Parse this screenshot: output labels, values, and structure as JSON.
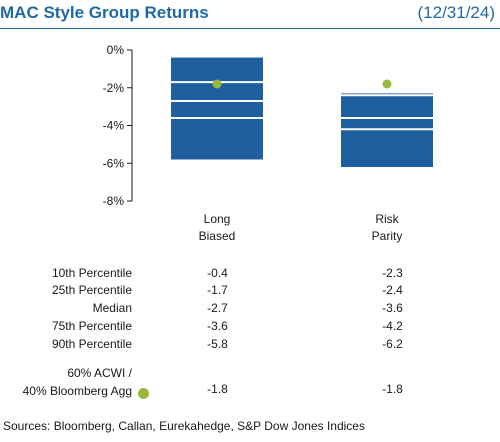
{
  "header": {
    "title": "MAC Style Group Returns",
    "date": "(12/31/24)"
  },
  "chart_data": {
    "type": "floating-bar",
    "ylim": [
      -8,
      0
    ],
    "yticks": [
      0,
      -2,
      -4,
      -6,
      -8
    ],
    "ytick_labels": [
      "0%",
      "-2%",
      "-4%",
      "-6%",
      "-8%"
    ],
    "categories": [
      "Long\nBiased",
      "Risk\nParity"
    ],
    "percentiles": [
      {
        "label": "10th Percentile",
        "values": [
          -0.4,
          -2.3
        ]
      },
      {
        "label": "25th Percentile",
        "values": [
          -1.7,
          -2.4
        ]
      },
      {
        "label": "Median",
        "values": [
          -2.7,
          -3.6
        ]
      },
      {
        "label": "75th Percentile",
        "values": [
          -3.6,
          -4.2
        ]
      },
      {
        "label": "90th Percentile",
        "values": [
          -5.8,
          -6.2
        ]
      }
    ],
    "displayed_values": [
      [
        "-0.4",
        "-2.3"
      ],
      [
        "-1.7",
        "-2.4"
      ],
      [
        "-2.7",
        "-3.6"
      ],
      [
        "-3.6",
        "-4.2"
      ],
      [
        "-5.8",
        "-6.2"
      ]
    ],
    "benchmark": {
      "label_line1": "60% ACWI /",
      "label_line2": "40% Bloomberg Agg",
      "values": [
        -1.8,
        -1.8
      ],
      "displayed": [
        "-1.8",
        "-1.8"
      ]
    },
    "colors": {
      "bar": "#1f5fa0",
      "benchmark": "#9ab83a",
      "title": "#1f6aa5"
    }
  },
  "source": "Sources: Bloomberg, Callan, Eurekahedge, S&P Dow Jones Indices"
}
